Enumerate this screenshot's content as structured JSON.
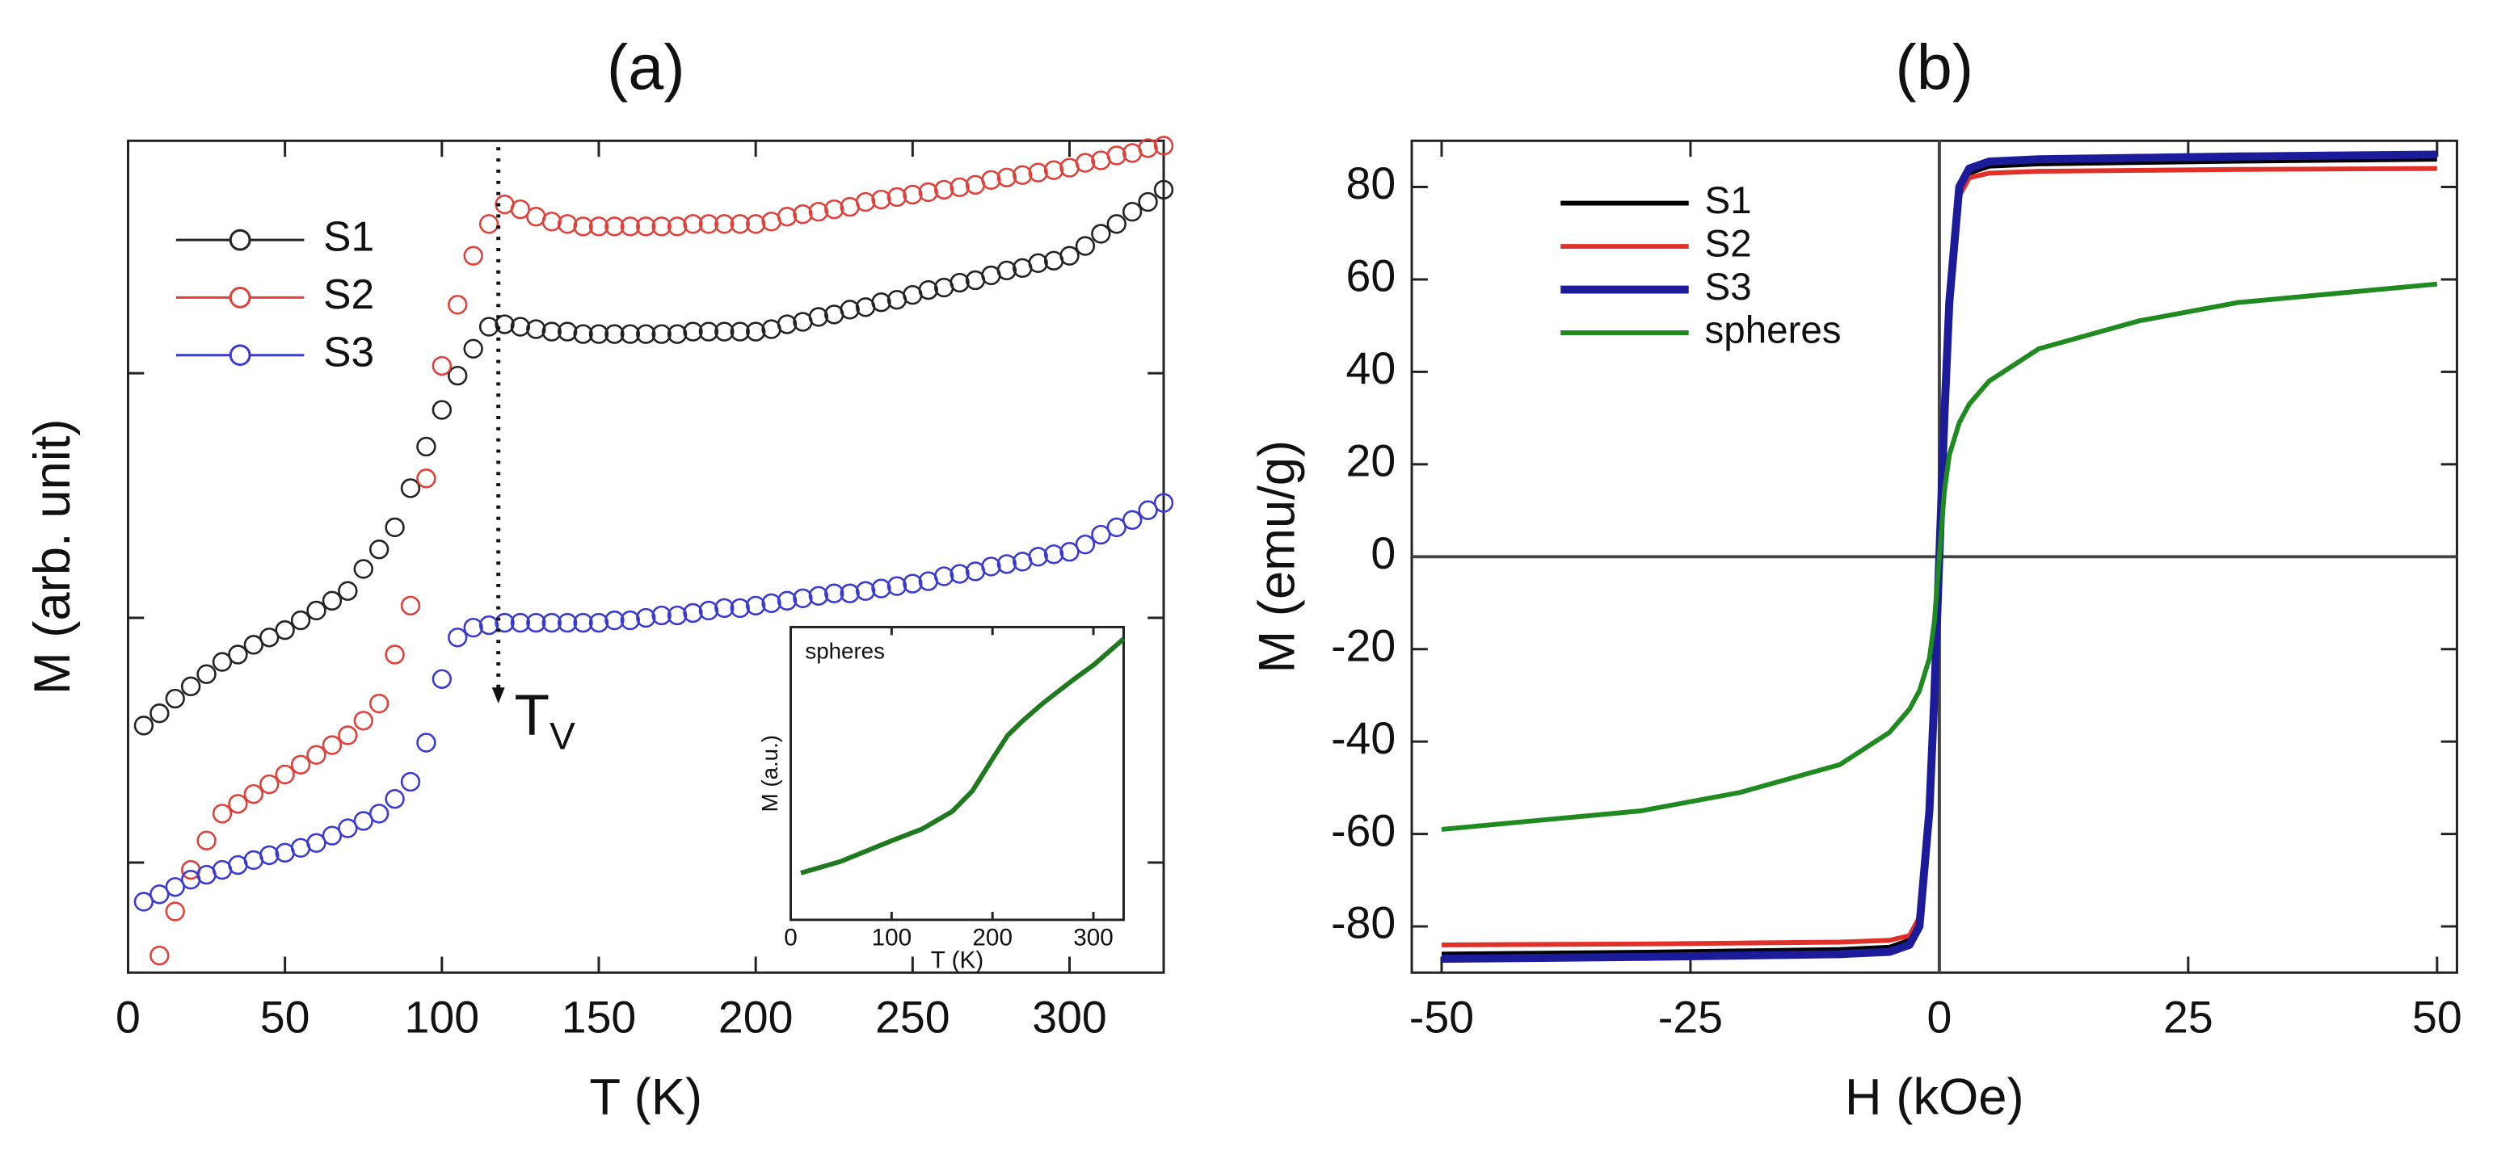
{
  "chart_data": [
    {
      "type": "scatter",
      "title": "(a)",
      "xlabel": "T (K)",
      "ylabel": "M (arb. unit)",
      "xlim": [
        0,
        330
      ],
      "xticks": [
        0,
        50,
        100,
        150,
        200,
        250,
        300
      ],
      "ylim": [
        0.55,
        3.95
      ],
      "yticks": [
        1,
        2,
        3
      ],
      "ytick_labels_shown": false,
      "x": [
        5,
        10,
        15,
        20,
        25,
        30,
        35,
        40,
        45,
        50,
        55,
        60,
        65,
        70,
        75,
        80,
        85,
        90,
        95,
        100,
        105,
        110,
        115,
        120,
        125,
        130,
        135,
        140,
        145,
        150,
        155,
        160,
        165,
        170,
        175,
        180,
        185,
        190,
        195,
        200,
        205,
        210,
        215,
        220,
        225,
        230,
        235,
        240,
        245,
        250,
        255,
        260,
        265,
        270,
        275,
        280,
        285,
        290,
        295,
        300,
        305,
        310,
        315,
        320,
        325,
        330
      ],
      "series": [
        {
          "name": "S1",
          "color": "#222222",
          "values": [
            1.56,
            1.61,
            1.67,
            1.72,
            1.77,
            1.82,
            1.85,
            1.89,
            1.92,
            1.95,
            1.99,
            2.03,
            2.07,
            2.11,
            2.2,
            2.28,
            2.37,
            2.53,
            2.7,
            2.85,
            2.99,
            3.1,
            3.19,
            3.2,
            3.19,
            3.18,
            3.17,
            3.17,
            3.16,
            3.16,
            3.16,
            3.16,
            3.16,
            3.16,
            3.16,
            3.17,
            3.17,
            3.17,
            3.17,
            3.17,
            3.18,
            3.2,
            3.21,
            3.23,
            3.24,
            3.26,
            3.27,
            3.29,
            3.3,
            3.32,
            3.34,
            3.35,
            3.37,
            3.38,
            3.4,
            3.42,
            3.43,
            3.45,
            3.46,
            3.48,
            3.52,
            3.57,
            3.61,
            3.66,
            3.7,
            3.75
          ]
        },
        {
          "name": "S2",
          "color": "#e0403a",
          "values": [
            null,
            0.62,
            0.8,
            0.97,
            1.09,
            1.2,
            1.24,
            1.28,
            1.32,
            1.36,
            1.4,
            1.44,
            1.48,
            1.52,
            1.58,
            1.65,
            1.85,
            2.05,
            2.57,
            3.03,
            3.28,
            3.48,
            3.61,
            3.69,
            3.67,
            3.64,
            3.62,
            3.61,
            3.6,
            3.6,
            3.6,
            3.6,
            3.6,
            3.6,
            3.6,
            3.61,
            3.61,
            3.61,
            3.61,
            3.61,
            3.62,
            3.64,
            3.65,
            3.66,
            3.67,
            3.68,
            3.7,
            3.71,
            3.72,
            3.73,
            3.74,
            3.75,
            3.76,
            3.77,
            3.79,
            3.8,
            3.81,
            3.82,
            3.83,
            3.84,
            3.86,
            3.87,
            3.89,
            3.9,
            3.92,
            3.93
          ]
        },
        {
          "name": "S3",
          "color": "#3a3ad0",
          "values": [
            0.84,
            0.87,
            0.9,
            0.93,
            0.95,
            0.97,
            0.99,
            1.01,
            1.03,
            1.04,
            1.06,
            1.08,
            1.11,
            1.14,
            1.17,
            1.2,
            1.26,
            1.33,
            1.49,
            1.75,
            1.92,
            1.96,
            1.97,
            1.98,
            1.98,
            1.98,
            1.98,
            1.98,
            1.98,
            1.98,
            1.99,
            1.99,
            2.0,
            2.01,
            2.01,
            2.02,
            2.03,
            2.04,
            2.04,
            2.05,
            2.06,
            2.07,
            2.08,
            2.09,
            2.1,
            2.1,
            2.11,
            2.12,
            2.13,
            2.14,
            2.15,
            2.17,
            2.18,
            2.19,
            2.21,
            2.22,
            2.23,
            2.25,
            2.26,
            2.27,
            2.3,
            2.34,
            2.37,
            2.4,
            2.44,
            2.47
          ]
        }
      ],
      "annotations": [
        {
          "text": "T",
          "subscript": "V",
          "x": 118,
          "y": 1.65
        }
      ]
    },
    {
      "type": "line",
      "title": "(b)",
      "xlabel": "H (kOe)",
      "ylabel": "M (emu/g)",
      "xlim": [
        -53,
        52
      ],
      "xticks": [
        -50,
        -25,
        0,
        25,
        50
      ],
      "ylim": [
        -90,
        90
      ],
      "yticks": [
        -80,
        -60,
        -40,
        -20,
        0,
        20,
        40,
        60,
        80
      ],
      "zero_lines": true,
      "x": [
        -50,
        -40,
        -30,
        -20,
        -10,
        -5,
        -3,
        -2,
        -1,
        -0.5,
        0,
        0.5,
        1,
        2,
        3,
        5,
        10,
        20,
        30,
        40,
        50
      ],
      "series": [
        {
          "name": "S1",
          "color": "#000000",
          "width": 3,
          "values": [
            -86,
            -85.8,
            -85.6,
            -85.3,
            -85,
            -84.5,
            -83,
            -79,
            -54,
            -29,
            0,
            29,
            54,
            79,
            83,
            84.5,
            85,
            85.3,
            85.6,
            85.8,
            86
          ]
        },
        {
          "name": "S2",
          "color": "#e0302a",
          "width": 3,
          "values": [
            -84,
            -83.9,
            -83.8,
            -83.6,
            -83.4,
            -83,
            -82,
            -78,
            -52,
            -28,
            0,
            28,
            52,
            78,
            82,
            83,
            83.4,
            83.6,
            83.8,
            83.9,
            84
          ]
        },
        {
          "name": "S3",
          "color": "#1c1c9a",
          "width": 5,
          "values": [
            -87,
            -86.8,
            -86.6,
            -86.3,
            -86,
            -85.5,
            -84,
            -80,
            -55,
            -30,
            0,
            30,
            55,
            80,
            84,
            85.5,
            86,
            86.3,
            86.6,
            86.8,
            87
          ]
        },
        {
          "name": "spheres",
          "color": "#1f8a1f",
          "width": 3,
          "values": [
            -59,
            -57,
            -55,
            -51,
            -45,
            -38,
            -33,
            -29,
            -22,
            -14,
            0,
            14,
            22,
            29,
            33,
            38,
            45,
            51,
            55,
            57,
            59
          ]
        }
      ]
    },
    {
      "type": "line",
      "xlabel": "T (K)",
      "ylabel": "M (a.u.)",
      "xlim": [
        0,
        330
      ],
      "xticks": [
        0,
        100,
        200,
        300
      ],
      "ylim": [
        0,
        1
      ],
      "x": [
        10,
        50,
        100,
        130,
        160,
        180,
        200,
        215,
        230,
        250,
        280,
        300,
        330
      ],
      "series": [
        {
          "name": "spheres",
          "color": "#1f7a1f",
          "width": 3,
          "values": [
            0.16,
            0.2,
            0.27,
            0.31,
            0.37,
            0.44,
            0.55,
            0.63,
            0.68,
            0.74,
            0.82,
            0.87,
            0.96
          ]
        }
      ]
    }
  ]
}
